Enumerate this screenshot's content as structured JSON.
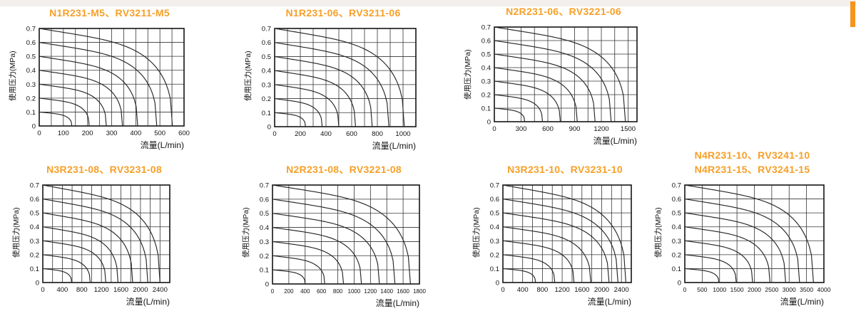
{
  "page": {
    "top_strip_color": "#f2efec",
    "accent_bar_color": "#F7941D",
    "title_color": "#F7A028",
    "curve_color": "#262626",
    "grid_color": "#343434",
    "border_color": "#141414",
    "tick_color": "#111111"
  },
  "chart_data": [
    {
      "type": "line",
      "title_lines": [
        "N1R231-M5、RV3211-M5"
      ],
      "xlabel": "流量(L/min)",
      "ylabel": "使用压力(MPa)",
      "xlim": [
        0,
        600
      ],
      "ylim": [
        0,
        0.7
      ],
      "x_grid_step": 50,
      "x_ticks": [
        0,
        100,
        200,
        300,
        400,
        500,
        600
      ],
      "y_ticks": [
        0,
        0.1,
        0.2,
        0.3,
        0.4,
        0.5,
        0.6,
        0.7
      ],
      "series": [
        {
          "set_pressure_mpa": 0.7,
          "max_flow_l_min": 552
        },
        {
          "set_pressure_mpa": 0.6,
          "max_flow_l_min": 487
        },
        {
          "set_pressure_mpa": 0.5,
          "max_flow_l_min": 408
        },
        {
          "set_pressure_mpa": 0.4,
          "max_flow_l_min": 345
        },
        {
          "set_pressure_mpa": 0.3,
          "max_flow_l_min": 278
        },
        {
          "set_pressure_mpa": 0.2,
          "max_flow_l_min": 207
        },
        {
          "set_pressure_mpa": 0.1,
          "max_flow_l_min": 135
        }
      ]
    },
    {
      "type": "line",
      "title_lines": [
        "N1R231-06、RV3211-06"
      ],
      "xlabel": "流量(L/min)",
      "ylabel": "使用压力(MPa)",
      "xlim": [
        0,
        1100
      ],
      "ylim": [
        0,
        0.7
      ],
      "x_grid_step": 100,
      "x_ticks": [
        0,
        200,
        400,
        600,
        800,
        1000
      ],
      "y_ticks": [
        0,
        0.1,
        0.2,
        0.3,
        0.4,
        0.5,
        0.6,
        0.7
      ],
      "series": [
        {
          "set_pressure_mpa": 0.7,
          "max_flow_l_min": 1010
        },
        {
          "set_pressure_mpa": 0.6,
          "max_flow_l_min": 890
        },
        {
          "set_pressure_mpa": 0.5,
          "max_flow_l_min": 760
        },
        {
          "set_pressure_mpa": 0.4,
          "max_flow_l_min": 630
        },
        {
          "set_pressure_mpa": 0.3,
          "max_flow_l_min": 500
        },
        {
          "set_pressure_mpa": 0.2,
          "max_flow_l_min": 370
        },
        {
          "set_pressure_mpa": 0.1,
          "max_flow_l_min": 240
        }
      ]
    },
    {
      "type": "line",
      "title_lines": [
        "N2R231-06、RV3221-06"
      ],
      "xlabel": "流量(L/min)",
      "ylabel": "使用压力(MPa)",
      "xlim": [
        0,
        1600
      ],
      "ylim": [
        0,
        0.7
      ],
      "x_grid_step": 150,
      "x_ticks": [
        0,
        300,
        600,
        900,
        1200,
        1500
      ],
      "y_ticks": [
        0,
        0.1,
        0.2,
        0.3,
        0.4,
        0.5,
        0.6,
        0.7
      ],
      "series": [
        {
          "set_pressure_mpa": 0.7,
          "max_flow_l_min": 1470
        },
        {
          "set_pressure_mpa": 0.6,
          "max_flow_l_min": 1310
        },
        {
          "set_pressure_mpa": 0.5,
          "max_flow_l_min": 1130
        },
        {
          "set_pressure_mpa": 0.4,
          "max_flow_l_min": 930
        },
        {
          "set_pressure_mpa": 0.3,
          "max_flow_l_min": 740
        },
        {
          "set_pressure_mpa": 0.2,
          "max_flow_l_min": 540
        },
        {
          "set_pressure_mpa": 0.1,
          "max_flow_l_min": 340
        }
      ]
    },
    {
      "type": "line",
      "title_lines": [
        "N3R231-08、RV3231-08"
      ],
      "xlabel": "流量(L/min)",
      "ylabel": "使用压力(MPa)",
      "xlim": [
        0,
        2600
      ],
      "ylim": [
        0,
        0.7
      ],
      "x_grid_step": 200,
      "x_ticks": [
        0,
        400,
        800,
        1200,
        1600,
        2000,
        2400
      ],
      "y_ticks": [
        0,
        0.1,
        0.2,
        0.3,
        0.4,
        0.5,
        0.6,
        0.7
      ],
      "series": [
        {
          "set_pressure_mpa": 0.7,
          "max_flow_l_min": 2400
        },
        {
          "set_pressure_mpa": 0.6,
          "max_flow_l_min": 2150
        },
        {
          "set_pressure_mpa": 0.5,
          "max_flow_l_min": 1840
        },
        {
          "set_pressure_mpa": 0.4,
          "max_flow_l_min": 1540
        },
        {
          "set_pressure_mpa": 0.3,
          "max_flow_l_min": 1290
        },
        {
          "set_pressure_mpa": 0.2,
          "max_flow_l_min": 970
        },
        {
          "set_pressure_mpa": 0.1,
          "max_flow_l_min": 590
        }
      ]
    },
    {
      "type": "line",
      "title_lines": [
        "N2R231-08、RV3221-08"
      ],
      "xlabel": "流量(L/min)",
      "ylabel": "使用压力(MPa)",
      "xlim": [
        0,
        1800
      ],
      "ylim": [
        0,
        0.7
      ],
      "x_grid_step": 200,
      "x_ticks": [
        0,
        200,
        400,
        600,
        800,
        1000,
        1200,
        1400,
        1600,
        1800
      ],
      "y_ticks": [
        0,
        0.1,
        0.2,
        0.3,
        0.4,
        0.5,
        0.6,
        0.7
      ],
      "series": [
        {
          "set_pressure_mpa": 0.7,
          "max_flow_l_min": 1690
        },
        {
          "set_pressure_mpa": 0.6,
          "max_flow_l_min": 1500
        },
        {
          "set_pressure_mpa": 0.5,
          "max_flow_l_min": 1310
        },
        {
          "set_pressure_mpa": 0.4,
          "max_flow_l_min": 1090
        },
        {
          "set_pressure_mpa": 0.3,
          "max_flow_l_min": 870
        },
        {
          "set_pressure_mpa": 0.2,
          "max_flow_l_min": 640
        },
        {
          "set_pressure_mpa": 0.1,
          "max_flow_l_min": 400
        }
      ]
    },
    {
      "type": "line",
      "title_lines": [
        "N3R231-10、RV3231-10"
      ],
      "xlabel": "流量(L/min)",
      "ylabel": "使用压力(MPa)",
      "xlim": [
        0,
        2600
      ],
      "ylim": [
        0,
        0.7
      ],
      "x_grid_step": 200,
      "x_ticks": [
        0,
        400,
        800,
        1200,
        1600,
        2000,
        2400
      ],
      "y_ticks": [
        0,
        0.1,
        0.2,
        0.3,
        0.4,
        0.5,
        0.6,
        0.7
      ],
      "series": [
        {
          "set_pressure_mpa": 0.7,
          "max_flow_l_min": 2490
        },
        {
          "set_pressure_mpa": 0.6,
          "max_flow_l_min": 2330
        },
        {
          "set_pressure_mpa": 0.5,
          "max_flow_l_min": 2150
        },
        {
          "set_pressure_mpa": 0.4,
          "max_flow_l_min": 1780
        },
        {
          "set_pressure_mpa": 0.3,
          "max_flow_l_min": 1440
        },
        {
          "set_pressure_mpa": 0.2,
          "max_flow_l_min": 1050
        },
        {
          "set_pressure_mpa": 0.1,
          "max_flow_l_min": 660
        }
      ]
    },
    {
      "type": "line",
      "title_lines": [
        "N4R231-10、RV3241-10",
        "N4R231-15、RV3241-15"
      ],
      "xlabel": "流量(L/min)",
      "ylabel": "使用压力(MPa)",
      "xlim": [
        0,
        4000
      ],
      "ylim": [
        0,
        0.7
      ],
      "x_grid_step": 500,
      "x_ticks": [
        0,
        500,
        1000,
        1500,
        2000,
        2500,
        3000,
        3500,
        4000
      ],
      "y_ticks": [
        0,
        0.1,
        0.2,
        0.3,
        0.4,
        0.5,
        0.6,
        0.7
      ],
      "series": [
        {
          "set_pressure_mpa": 0.7,
          "max_flow_l_min": 3700
        },
        {
          "set_pressure_mpa": 0.6,
          "max_flow_l_min": 3300
        },
        {
          "set_pressure_mpa": 0.5,
          "max_flow_l_min": 2900
        },
        {
          "set_pressure_mpa": 0.4,
          "max_flow_l_min": 2450
        },
        {
          "set_pressure_mpa": 0.3,
          "max_flow_l_min": 1950
        },
        {
          "set_pressure_mpa": 0.2,
          "max_flow_l_min": 1480
        },
        {
          "set_pressure_mpa": 0.1,
          "max_flow_l_min": 980
        }
      ]
    }
  ]
}
